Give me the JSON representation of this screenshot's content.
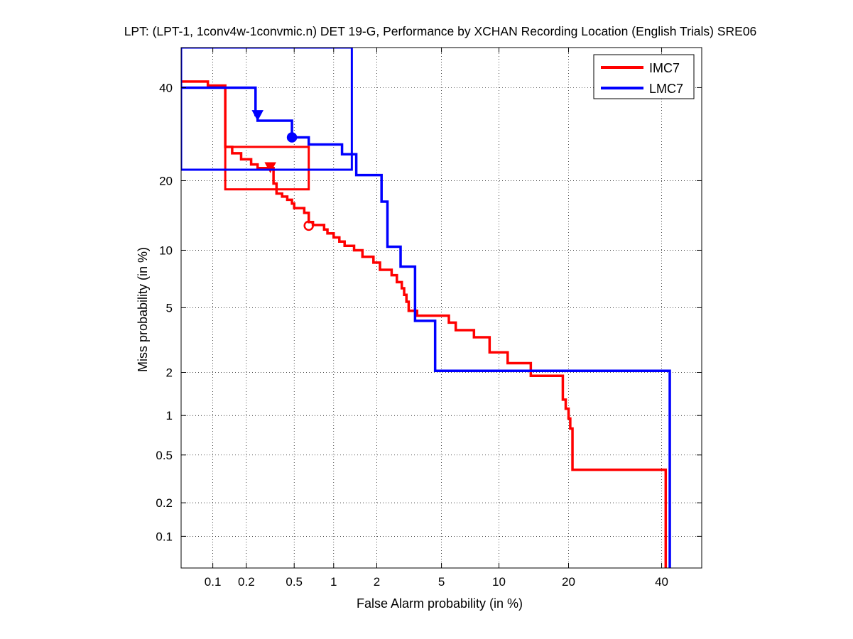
{
  "chart_data": {
    "type": "line",
    "title": "LPT: (LPT-1, 1conv4w-1convmic.n) DET 19-G,  Performance by XCHAN Recording Location (English Trials) SRE06",
    "xlabel": "False Alarm probability (in %)",
    "ylabel": "Miss probability (in %)",
    "scale": "normal-deviate",
    "xlim": [
      0.05,
      50
    ],
    "ylim": [
      0.05,
      50
    ],
    "x_ticks": [
      0.1,
      0.2,
      0.5,
      1,
      2,
      5,
      10,
      20,
      40
    ],
    "x_tick_labels": [
      "0.1",
      "0.2",
      "0.5",
      "1",
      "2",
      "5",
      "10",
      "20",
      "40"
    ],
    "y_ticks": [
      0.1,
      0.2,
      0.5,
      1,
      2,
      5,
      10,
      20,
      40
    ],
    "y_tick_labels": [
      "0.1",
      "0.2",
      "0.5",
      "1",
      "2",
      "5",
      "10",
      "20",
      "40"
    ],
    "grid": true,
    "legend_position": "top-right",
    "series": [
      {
        "name": "IMC7",
        "color": "#ff0000",
        "points": [
          [
            0.05,
            41.5
          ],
          [
            0.09,
            41.5
          ],
          [
            0.09,
            40.5
          ],
          [
            0.13,
            40.5
          ],
          [
            0.13,
            26.5
          ],
          [
            0.15,
            26.5
          ],
          [
            0.15,
            25.2
          ],
          [
            0.18,
            25.2
          ],
          [
            0.18,
            24
          ],
          [
            0.22,
            24
          ],
          [
            0.22,
            23
          ],
          [
            0.25,
            23
          ],
          [
            0.25,
            22.3
          ],
          [
            0.34,
            22.3
          ],
          [
            0.34,
            19.5
          ],
          [
            0.36,
            19.5
          ],
          [
            0.36,
            17.8
          ],
          [
            0.4,
            17.8
          ],
          [
            0.4,
            17.3
          ],
          [
            0.44,
            17.3
          ],
          [
            0.44,
            16.8
          ],
          [
            0.48,
            16.8
          ],
          [
            0.48,
            16.2
          ],
          [
            0.5,
            16.2
          ],
          [
            0.5,
            15.5
          ],
          [
            0.6,
            15.5
          ],
          [
            0.6,
            14.8
          ],
          [
            0.65,
            14.8
          ],
          [
            0.65,
            13.5
          ],
          [
            0.7,
            13.5
          ],
          [
            0.7,
            13.1
          ],
          [
            0.85,
            13.1
          ],
          [
            0.85,
            12.5
          ],
          [
            0.9,
            12.5
          ],
          [
            0.9,
            12
          ],
          [
            1,
            12
          ],
          [
            1,
            11.5
          ],
          [
            1.1,
            11.5
          ],
          [
            1.1,
            11
          ],
          [
            1.2,
            11
          ],
          [
            1.2,
            10.5
          ],
          [
            1.4,
            10.5
          ],
          [
            1.4,
            10
          ],
          [
            1.6,
            10
          ],
          [
            1.6,
            9.3
          ],
          [
            1.9,
            9.3
          ],
          [
            1.9,
            8.7
          ],
          [
            2.1,
            8.7
          ],
          [
            2.1,
            8
          ],
          [
            2.5,
            8
          ],
          [
            2.5,
            7.5
          ],
          [
            2.7,
            7.5
          ],
          [
            2.7,
            6.9
          ],
          [
            2.9,
            6.9
          ],
          [
            2.9,
            6.4
          ],
          [
            3,
            6.4
          ],
          [
            3,
            5.9
          ],
          [
            3.1,
            5.9
          ],
          [
            3.1,
            5.4
          ],
          [
            3.2,
            5.4
          ],
          [
            3.2,
            4.8
          ],
          [
            3.6,
            4.8
          ],
          [
            3.6,
            4.5
          ],
          [
            5.5,
            4.5
          ],
          [
            5.5,
            4.1
          ],
          [
            6,
            4.1
          ],
          [
            6,
            3.7
          ],
          [
            7.5,
            3.7
          ],
          [
            7.5,
            3.35
          ],
          [
            9,
            3.35
          ],
          [
            9,
            2.7
          ],
          [
            11,
            2.7
          ],
          [
            11,
            2.3
          ],
          [
            14,
            2.3
          ],
          [
            14,
            1.9
          ],
          [
            19,
            1.9
          ],
          [
            19,
            1.3
          ],
          [
            19.5,
            1.3
          ],
          [
            19.5,
            1.12
          ],
          [
            20,
            1.12
          ],
          [
            20,
            0.95
          ],
          [
            20.3,
            0.95
          ],
          [
            20.3,
            0.8
          ],
          [
            20.7,
            0.8
          ],
          [
            20.7,
            0.38
          ],
          [
            41,
            0.38
          ],
          [
            41,
            0.05
          ]
        ],
        "min_dcf_point": [
          0.65,
          13
        ],
        "actual_decision_point": [
          0.32,
          22.5
        ],
        "confidence_box": {
          "fa": [
            0.13,
            0.65
          ],
          "miss": [
            18.5,
            26.5
          ]
        }
      },
      {
        "name": "LMC7",
        "color": "#0000ff",
        "points": [
          [
            0.05,
            40
          ],
          [
            0.24,
            40
          ],
          [
            0.24,
            33.5
          ],
          [
            0.25,
            33.5
          ],
          [
            0.25,
            32.2
          ],
          [
            0.48,
            32.2
          ],
          [
            0.48,
            28.5
          ],
          [
            0.65,
            28.5
          ],
          [
            0.65,
            27
          ],
          [
            1.15,
            27
          ],
          [
            1.15,
            25
          ],
          [
            1.45,
            25
          ],
          [
            1.45,
            21
          ],
          [
            2.15,
            21
          ],
          [
            2.15,
            16.5
          ],
          [
            2.35,
            16.5
          ],
          [
            2.35,
            10.4
          ],
          [
            2.85,
            10.4
          ],
          [
            2.85,
            8.3
          ],
          [
            3.5,
            8.3
          ],
          [
            3.5,
            4.2
          ],
          [
            4.6,
            4.2
          ],
          [
            4.6,
            2.05
          ],
          [
            42,
            2.05
          ],
          [
            42,
            0.05
          ]
        ],
        "min_dcf_point": [
          0.48,
          28.5
        ],
        "actual_decision_point": [
          0.25,
          33.5
        ],
        "confidence_box": {
          "fa": [
            0.05,
            1.35
          ],
          "miss": [
            22,
            50
          ]
        }
      }
    ]
  }
}
